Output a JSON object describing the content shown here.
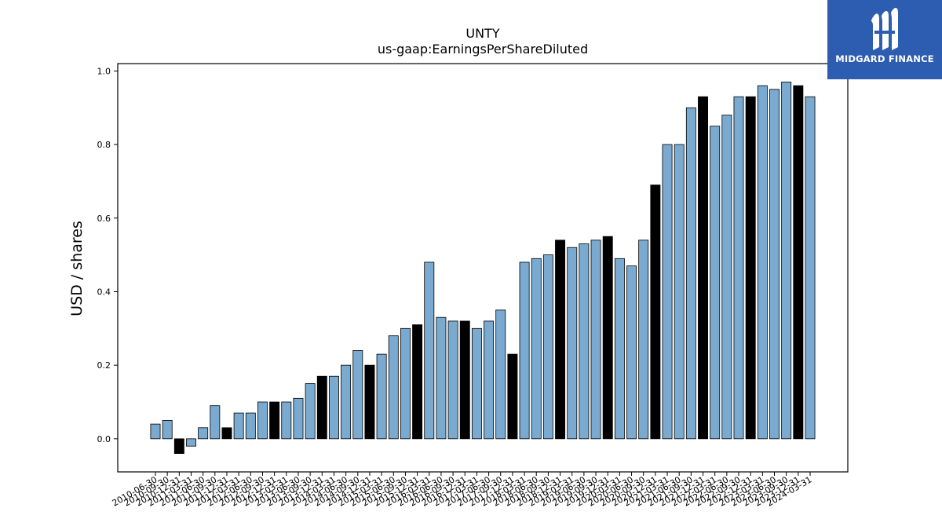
{
  "chart_data": {
    "type": "bar",
    "title": "UNTY",
    "subtitle": "us-gaap:EarningsPerShareDiluted",
    "xlabel": "",
    "ylabel": "USD / shares",
    "ylim": [
      -0.09,
      1.02
    ],
    "yticks": [
      "0.0",
      "0.2",
      "0.4",
      "0.6",
      "0.8",
      "1.0"
    ],
    "grid": false,
    "colors": {
      "quarter": "#7aaad0",
      "annual": "#000000",
      "edge": "#000000"
    },
    "categories": [
      "2010-06-30",
      "2010-09-30",
      "2010-12-31",
      "2011-03-31",
      "2011-06-30",
      "2011-09-30",
      "2011-12-31",
      "2012-03-31",
      "2012-06-30",
      "2012-09-30",
      "2012-12-31",
      "2013-03-31",
      "2013-06-30",
      "2013-09-30",
      "2013-12-31",
      "2014-03-31",
      "2014-06-30",
      "2014-09-30",
      "2014-12-31",
      "2015-03-31",
      "2015-06-30",
      "2015-09-30",
      "2015-12-31",
      "2016-03-31",
      "2016-06-30",
      "2016-09-30",
      "2016-12-31",
      "2017-03-31",
      "2017-06-30",
      "2017-09-30",
      "2017-12-31",
      "2018-03-31",
      "2018-06-30",
      "2018-09-30",
      "2018-12-31",
      "2019-03-31",
      "2019-06-30",
      "2019-09-30",
      "2019-12-31",
      "2020-03-31",
      "2020-06-30",
      "2020-09-30",
      "2020-12-31",
      "2021-03-31",
      "2021-06-30",
      "2021-09-30",
      "2021-12-31",
      "2022-03-31",
      "2022-06-30",
      "2022-09-30",
      "2022-12-31",
      "2023-03-31",
      "2023-06-30",
      "2023-09-30",
      "2023-12-31",
      "2024-03-31"
    ],
    "values": [
      0.04,
      0.05,
      -0.04,
      -0.02,
      0.03,
      0.09,
      0.03,
      0.07,
      0.07,
      0.1,
      0.1,
      0.1,
      0.11,
      0.15,
      0.17,
      0.17,
      0.2,
      0.24,
      0.2,
      0.23,
      0.28,
      0.3,
      0.31,
      0.48,
      0.33,
      0.32,
      0.32,
      0.3,
      0.32,
      0.35,
      0.23,
      0.48,
      0.49,
      0.5,
      0.54,
      0.52,
      0.53,
      0.54,
      0.55,
      0.49,
      0.47,
      0.54,
      0.69,
      0.8,
      0.8,
      0.9,
      0.93,
      0.85,
      0.88,
      0.93,
      0.93,
      0.96,
      0.95,
      0.97,
      0.96,
      0.93
    ]
  },
  "logo": {
    "text": "MIDGARD FINANCE"
  }
}
